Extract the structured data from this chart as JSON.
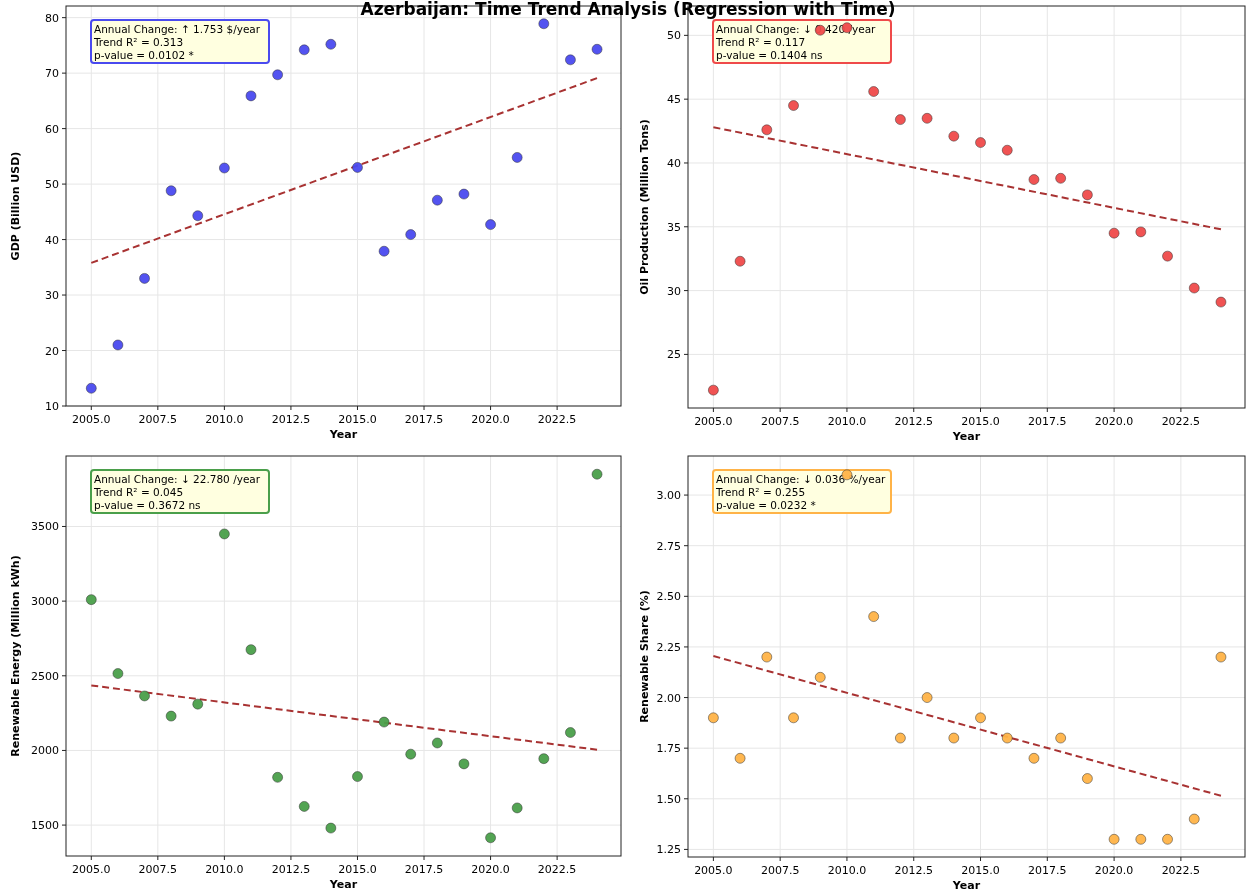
{
  "chart_data": [
    {
      "type": "scatter",
      "title": "Azerbaijan: Time Trend Analysis (Regression with Time)",
      "xlabel": "Year",
      "ylabel": "GDP (Billion USD)",
      "x": [
        2005,
        2006,
        2007,
        2008,
        2009,
        2010,
        2011,
        2012,
        2013,
        2014,
        2015,
        2016,
        2017,
        2018,
        2019,
        2020,
        2021,
        2022,
        2023,
        2024
      ],
      "series": [
        {
          "color": "#4a4aef",
          "marker": "circle",
          "values": [
            13.2,
            21.0,
            33.0,
            48.8,
            44.3,
            52.9,
            65.9,
            69.7,
            74.2,
            75.2,
            53.0,
            37.9,
            40.9,
            47.1,
            48.2,
            42.7,
            54.8,
            78.9,
            72.4,
            74.3
          ]
        },
        {
          "type": "line",
          "color": "#a83232",
          "line_style": "dashed",
          "values": [
            35.8,
            null,
            null,
            null,
            null,
            null,
            null,
            null,
            null,
            null,
            null,
            null,
            null,
            null,
            null,
            null,
            null,
            null,
            null,
            69.1
          ]
        }
      ],
      "grid": true,
      "xlim": [
        2004.05,
        2024.9
      ],
      "ylim": [
        10,
        82.1
      ],
      "xticks": [
        {
          "value": 2005,
          "label": "2005.0"
        },
        {
          "value": 2007.5,
          "label": "2007.5"
        },
        {
          "value": 2010,
          "label": "2010.0"
        },
        {
          "value": 2012.5,
          "label": "2012.5"
        },
        {
          "value": 2015,
          "label": "2015.0"
        },
        {
          "value": 2017.5,
          "label": "2017.5"
        },
        {
          "value": 2020,
          "label": "2020.0"
        },
        {
          "value": 2022.5,
          "label": "2022.5"
        }
      ],
      "yticks": [
        10,
        20,
        30,
        40,
        50,
        60,
        70,
        80
      ],
      "annotations": [
        "Annual Change: ↑ 1.753 $/year",
        "Trend R² = 0.313",
        "p-value = 0.0102 *"
      ]
    },
    {
      "type": "scatter",
      "xlabel": "Year",
      "ylabel": "Oil Production (Million Tons)",
      "x": [
        2005,
        2006,
        2007,
        2008,
        2009,
        2010,
        2011,
        2012,
        2013,
        2014,
        2015,
        2016,
        2017,
        2018,
        2019,
        2020,
        2021,
        2022,
        2023,
        2024
      ],
      "series": [
        {
          "color": "#ef4a4a",
          "marker": "circle",
          "values": [
            22.2,
            32.3,
            42.6,
            44.5,
            50.4,
            50.6,
            45.6,
            43.4,
            43.5,
            42.1,
            41.6,
            41.0,
            38.7,
            38.8,
            37.5,
            34.5,
            34.6,
            32.7,
            30.2,
            29.1
          ]
        },
        {
          "type": "line",
          "color": "#a83232",
          "line_style": "dashed",
          "values": [
            42.8,
            null,
            null,
            null,
            null,
            null,
            null,
            null,
            null,
            null,
            null,
            null,
            null,
            null,
            null,
            null,
            null,
            null,
            null,
            34.8
          ]
        }
      ],
      "grid": true,
      "xlim": [
        2004.05,
        2024.9
      ],
      "ylim": [
        20.8,
        52.3
      ],
      "xticks": [
        {
          "value": 2005,
          "label": "2005.0"
        },
        {
          "value": 2007.5,
          "label": "2007.5"
        },
        {
          "value": 2010,
          "label": "2010.0"
        },
        {
          "value": 2012.5,
          "label": "2012.5"
        },
        {
          "value": 2015,
          "label": "2015.0"
        },
        {
          "value": 2017.5,
          "label": "2017.5"
        },
        {
          "value": 2020,
          "label": "2020.0"
        },
        {
          "value": 2022.5,
          "label": "2022.5"
        }
      ],
      "yticks": [
        25,
        30,
        35,
        40,
        45,
        50
      ],
      "annotations": [
        "Annual Change: ↓ 0.420 /year",
        "Trend R² = 0.117",
        "p-value = 0.1404 ns"
      ]
    },
    {
      "type": "scatter",
      "xlabel": "Year",
      "ylabel": "Renewable Energy (Million kWh)",
      "x": [
        2005,
        2006,
        2007,
        2008,
        2009,
        2010,
        2011,
        2012,
        2013,
        2014,
        2015,
        2016,
        2017,
        2018,
        2019,
        2020,
        2021,
        2022,
        2023,
        2024
      ],
      "series": [
        {
          "color": "#4a9f4a",
          "marker": "circle",
          "values": [
            3010,
            2515,
            2365,
            2230,
            2310,
            3450,
            2675,
            1820,
            1625,
            1480,
            1825,
            2190,
            1975,
            2050,
            1910,
            1415,
            1615,
            1945,
            2120,
            3850
          ]
        },
        {
          "type": "line",
          "color": "#a83232",
          "line_style": "dashed",
          "values": [
            2435,
            null,
            null,
            null,
            null,
            null,
            null,
            null,
            null,
            null,
            null,
            null,
            null,
            null,
            null,
            null,
            null,
            null,
            null,
            2005
          ]
        }
      ],
      "grid": true,
      "xlim": [
        2004.05,
        2024.9
      ],
      "ylim": [
        1293,
        3972
      ],
      "xticks": [
        {
          "value": 2005,
          "label": "2005.0"
        },
        {
          "value": 2007.5,
          "label": "2007.5"
        },
        {
          "value": 2010,
          "label": "2010.0"
        },
        {
          "value": 2012.5,
          "label": "2012.5"
        },
        {
          "value": 2015,
          "label": "2015.0"
        },
        {
          "value": 2017.5,
          "label": "2017.5"
        },
        {
          "value": 2020,
          "label": "2020.0"
        },
        {
          "value": 2022.5,
          "label": "2022.5"
        }
      ],
      "yticks": [
        1500,
        2000,
        2500,
        3000,
        3500
      ],
      "annotations": [
        "Annual Change: ↓ 22.780 /year",
        "Trend R² = 0.045",
        "p-value = 0.3672 ns"
      ]
    },
    {
      "type": "scatter",
      "xlabel": "Year",
      "ylabel": "Renewable Share (%)",
      "x": [
        2005,
        2006,
        2007,
        2008,
        2009,
        2010,
        2011,
        2012,
        2013,
        2014,
        2015,
        2016,
        2017,
        2018,
        2019,
        2020,
        2021,
        2022,
        2023,
        2024
      ],
      "series": [
        {
          "color": "#ffb347",
          "marker": "circle",
          "values": [
            1.9,
            1.7,
            2.2,
            1.9,
            2.1,
            3.1,
            2.4,
            1.8,
            2.0,
            1.8,
            1.9,
            1.8,
            1.7,
            1.8,
            1.6,
            1.3,
            1.3,
            1.3,
            1.4,
            2.2
          ]
        },
        {
          "type": "line",
          "color": "#a83232",
          "line_style": "dashed",
          "values": [
            2.205,
            null,
            null,
            null,
            null,
            null,
            null,
            null,
            null,
            null,
            null,
            null,
            null,
            null,
            null,
            null,
            null,
            null,
            null,
            1.515
          ]
        }
      ],
      "grid": true,
      "xlim": [
        2004.05,
        2024.9
      ],
      "ylim": [
        1.2125,
        3.193
      ],
      "xticks": [
        {
          "value": 2005,
          "label": "2005.0"
        },
        {
          "value": 2007.5,
          "label": "2007.5"
        },
        {
          "value": 2010,
          "label": "2010.0"
        },
        {
          "value": 2012.5,
          "label": "2012.5"
        },
        {
          "value": 2015,
          "label": "2015.0"
        },
        {
          "value": 2017.5,
          "label": "2017.5"
        },
        {
          "value": 2020,
          "label": "2020.0"
        },
        {
          "value": 2022.5,
          "label": "2022.5"
        }
      ],
      "yticks": [
        {
          "value": 1.25,
          "label": "1.25"
        },
        {
          "value": 1.5,
          "label": "1.50"
        },
        {
          "value": 1.75,
          "label": "1.75"
        },
        {
          "value": 2,
          "label": "2.00"
        },
        {
          "value": 2.25,
          "label": "2.25"
        },
        {
          "value": 2.5,
          "label": "2.50"
        },
        {
          "value": 2.75,
          "label": "2.75"
        },
        {
          "value": 3,
          "label": "3.00"
        }
      ],
      "annotations": [
        "Annual Change: ↓ 0.036 %/year",
        "Trend R² = 0.255",
        "p-value = 0.0232 *"
      ]
    }
  ]
}
